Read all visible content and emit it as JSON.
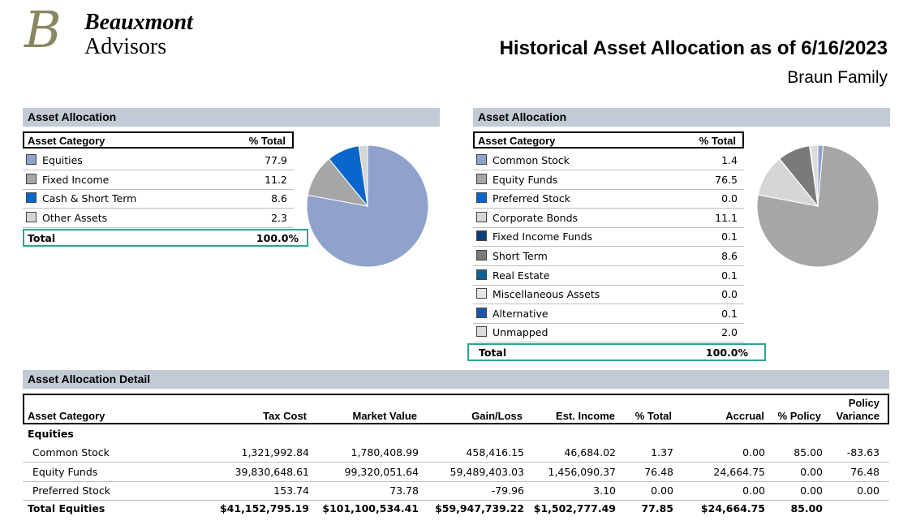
{
  "logo": {
    "monogram": "B",
    "line1": "Beauxmont",
    "line2": "Advisors"
  },
  "header": {
    "title": "Historical Asset Allocation as of 6/16/2023",
    "subtitle": "Braun Family"
  },
  "left_panel": {
    "section_title": "Asset Allocation",
    "col_category": "Asset Category",
    "col_total": "% Total",
    "rows": [
      {
        "label": "Equities",
        "value": "77.9",
        "color": "#8fa2cc"
      },
      {
        "label": "Fixed Income",
        "value": "11.2",
        "color": "#a6a6a6"
      },
      {
        "label": "Cash & Short Term",
        "value": "8.6",
        "color": "#0a66cc"
      },
      {
        "label": "Other Assets",
        "value": "2.3",
        "color": "#d6d6d6"
      }
    ],
    "total_label": "Total",
    "total_value": "100.0%"
  },
  "right_panel": {
    "section_title": "Asset Allocation",
    "col_category": "Asset Category",
    "col_total": "% Total",
    "rows": [
      {
        "label": "Common Stock",
        "value": "1.4",
        "color": "#8fa2cc"
      },
      {
        "label": "Equity Funds",
        "value": "76.5",
        "color": "#a6a6a6"
      },
      {
        "label": "Preferred Stock",
        "value": "0.0",
        "color": "#0a66cc"
      },
      {
        "label": "Corporate Bonds",
        "value": "11.1",
        "color": "#d6d6d6"
      },
      {
        "label": "Fixed Income Funds",
        "value": "0.1",
        "color": "#0b3f7a"
      },
      {
        "label": "Short Term",
        "value": "8.6",
        "color": "#7a7a7a"
      },
      {
        "label": "Real Estate",
        "value": "0.1",
        "color": "#0e5f94"
      },
      {
        "label": "Miscellaneous Assets",
        "value": "0.0",
        "color": "#e6e6e6"
      },
      {
        "label": "Alternative",
        "value": "0.1",
        "color": "#1a56a8"
      },
      {
        "label": "Unmapped",
        "value": "2.0",
        "color": "#dcdcdc"
      }
    ],
    "total_label": "Total",
    "total_value": "100.0%"
  },
  "detail": {
    "section_title": "Asset Allocation Detail",
    "columns": {
      "category": "Asset Category",
      "tax_cost": "Tax Cost",
      "market_value": "Market Value",
      "gain_loss": "Gain/Loss",
      "est_income": "Est. Income",
      "pct_total": "% Total",
      "accrual": "Accrual",
      "pct_policy": "% Policy",
      "policy_variance_1": "Policy",
      "policy_variance_2": "Variance"
    },
    "group_label": "Equities",
    "rows": [
      {
        "category": "Common Stock",
        "tax_cost": "1,321,992.84",
        "market_value": "1,780,408.99",
        "gain_loss": "458,416.15",
        "est_income": "46,684.02",
        "pct_total": "1.37",
        "accrual": "0.00",
        "pct_policy": "85.00",
        "policy_variance": "-83.63"
      },
      {
        "category": "Equity Funds",
        "tax_cost": "39,830,648.61",
        "market_value": "99,320,051.64",
        "gain_loss": "59,489,403.03",
        "est_income": "1,456,090.37",
        "pct_total": "76.48",
        "accrual": "24,664.75",
        "pct_policy": "0.00",
        "policy_variance": "76.48"
      },
      {
        "category": "Preferred Stock",
        "tax_cost": "153.74",
        "market_value": "73.78",
        "gain_loss": "-79.96",
        "est_income": "3.10",
        "pct_total": "0.00",
        "accrual": "0.00",
        "pct_policy": "0.00",
        "policy_variance": "0.00"
      }
    ],
    "total": {
      "category": "Total Equities",
      "tax_cost": "$41,152,795.19",
      "market_value": "$101,100,534.41",
      "gain_loss": "$59,947,739.22",
      "est_income": "$1,502,777.49",
      "pct_total": "77.85",
      "accrual": "$24,664.75",
      "pct_policy": "85.00",
      "policy_variance": ""
    }
  },
  "chart_data": [
    {
      "type": "pie",
      "title": "",
      "categories": [
        "Equities",
        "Fixed Income",
        "Cash & Short Term",
        "Other Assets"
      ],
      "values": [
        77.9,
        11.2,
        8.6,
        2.3
      ],
      "colors": [
        "#8fa2cc",
        "#a6a6a6",
        "#0a66cc",
        "#d6d6d6"
      ]
    },
    {
      "type": "pie",
      "title": "",
      "categories": [
        "Common Stock",
        "Equity Funds",
        "Preferred Stock",
        "Corporate Bonds",
        "Fixed Income Funds",
        "Short Term",
        "Real Estate",
        "Miscellaneous Assets",
        "Alternative",
        "Unmapped"
      ],
      "values": [
        1.4,
        76.5,
        0.0,
        11.1,
        0.1,
        8.6,
        0.1,
        0.0,
        0.1,
        2.0
      ],
      "colors": [
        "#8fa2cc",
        "#a6a6a6",
        "#0a66cc",
        "#d6d6d6",
        "#0b3f7a",
        "#7a7a7a",
        "#0e5f94",
        "#e6e6e6",
        "#1a56a8",
        "#dcdcdc"
      ]
    }
  ]
}
